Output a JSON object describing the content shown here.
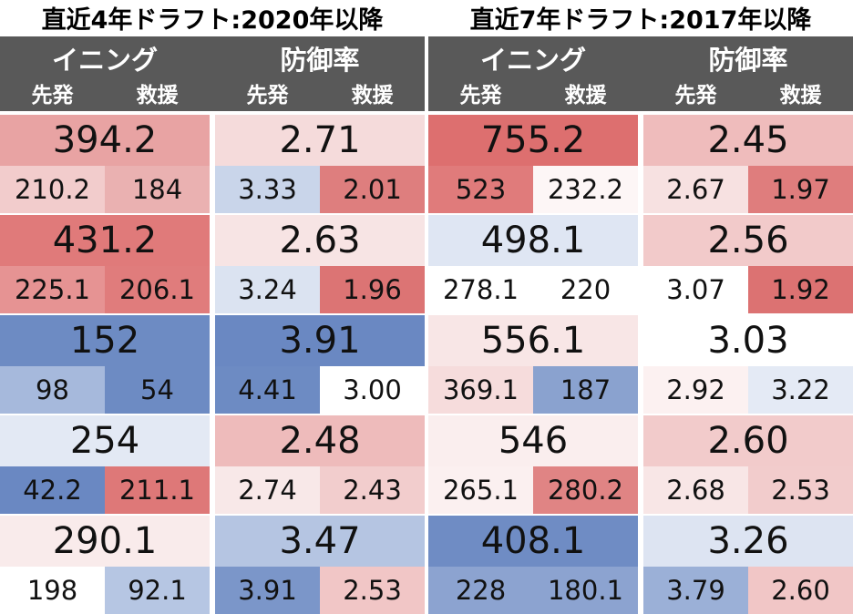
{
  "panels": [
    {
      "title": "直近4年ドラフト:2020年以降",
      "groups": [
        {
          "label": "イニング",
          "sub": [
            "先発",
            "救援"
          ]
        },
        {
          "label": "防御率",
          "sub": [
            "先発",
            "救援"
          ]
        }
      ],
      "rows": [
        [
          {
            "total": "394.2",
            "starter": "210.2",
            "reliever": "184",
            "colors": [
              "#e8a3a3",
              "#f2cccc",
              "#eab1b1"
            ]
          },
          {
            "total": "2.71",
            "starter": "3.33",
            "reliever": "2.01",
            "colors": [
              "#f5dbdb",
              "#c9d5ea",
              "#de7e7e"
            ]
          }
        ],
        [
          {
            "total": "431.2",
            "starter": "225.1",
            "reliever": "206.1",
            "colors": [
              "#e07a7a",
              "#e69393",
              "#e07c7c"
            ]
          },
          {
            "total": "2.63",
            "starter": "3.24",
            "reliever": "1.96",
            "colors": [
              "#f7e4e4",
              "#dbe3f1",
              "#dc7474"
            ]
          }
        ],
        [
          {
            "total": "152",
            "starter": "98",
            "reliever": "54",
            "colors": [
              "#6d8bc3",
              "#a6b9dc",
              "#6d8bc3"
            ]
          },
          {
            "total": "3.91",
            "starter": "4.41",
            "reliever": "3.00",
            "colors": [
              "#6a88c2",
              "#6d8bc3",
              "#ffffff"
            ]
          }
        ],
        [
          {
            "total": "254",
            "starter": "42.2",
            "reliever": "211.1",
            "colors": [
              "#e3e9f4",
              "#6a88c2",
              "#de7878"
            ]
          },
          {
            "total": "2.48",
            "starter": "2.74",
            "reliever": "2.43",
            "colors": [
              "#eebbbb",
              "#f8e8e8",
              "#f2cdcd"
            ]
          }
        ],
        [
          {
            "total": "290.1",
            "starter": "198",
            "reliever": "92.1",
            "colors": [
              "#f9ebeb",
              "#ffffff",
              "#b6c6e3"
            ]
          },
          {
            "total": "3.47",
            "starter": "3.91",
            "reliever": "2.53",
            "colors": [
              "#b5c5e2",
              "#7b96c9",
              "#f1c6c6"
            ]
          }
        ]
      ]
    },
    {
      "title": "直近7年ドラフト:2017年以降",
      "groups": [
        {
          "label": "イニング",
          "sub": [
            "先発",
            "救援"
          ]
        },
        {
          "label": "防御率",
          "sub": [
            "先発",
            "救援"
          ]
        }
      ],
      "rows": [
        [
          {
            "total": "755.2",
            "starter": "523",
            "reliever": "232.2",
            "colors": [
              "#dd6f6f",
              "#e07b7b",
              "#fdf6f6"
            ]
          },
          {
            "total": "2.45",
            "starter": "2.67",
            "reliever": "1.97",
            "colors": [
              "#efbcbc",
              "#f7e1e1",
              "#df7d7d"
            ]
          }
        ],
        [
          {
            "total": "498.1",
            "starter": "278.1",
            "reliever": "220",
            "colors": [
              "#dfe6f3",
              "#ffffff",
              "#ffffff"
            ]
          },
          {
            "total": "2.56",
            "starter": "3.07",
            "reliever": "1.92",
            "colors": [
              "#f2caca",
              "#ffffff",
              "#dc7272"
            ]
          }
        ],
        [
          {
            "total": "556.1",
            "starter": "369.1",
            "reliever": "187",
            "colors": [
              "#f8e6e6",
              "#f6dcdc",
              "#8aa2cf"
            ]
          },
          {
            "total": "3.03",
            "starter": "2.92",
            "reliever": "3.22",
            "colors": [
              "#ffffff",
              "#fcf1f1",
              "#e4eaf5"
            ]
          }
        ],
        [
          {
            "total": "546",
            "starter": "265.1",
            "reliever": "280.2",
            "colors": [
              "#faeeee",
              "#fbf0f0",
              "#e08484"
            ]
          },
          {
            "total": "2.60",
            "starter": "2.68",
            "reliever": "2.53",
            "colors": [
              "#f2cbcb",
              "#f8e6e6",
              "#f2cccc"
            ]
          }
        ],
        [
          {
            "total": "408.1",
            "starter": "228",
            "reliever": "180.1",
            "colors": [
              "#6f8cc4",
              "#8ca3d0",
              "#8ca3d0"
            ]
          },
          {
            "total": "3.26",
            "starter": "3.79",
            "reliever": "2.60",
            "colors": [
              "#dde4f2",
              "#9bb0d7",
              "#f1c6c6"
            ]
          }
        ]
      ]
    }
  ]
}
